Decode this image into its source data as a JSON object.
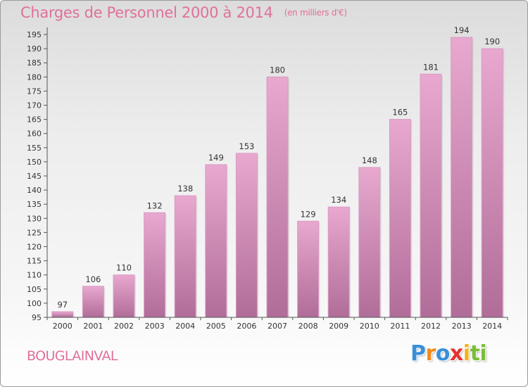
{
  "header": {
    "title": "Charges de Personnel 2000 à 2014",
    "subtitle": "(en milliers d'€)"
  },
  "commune": "BOUGLAINVAL",
  "logo": {
    "letters": [
      "P",
      "r",
      "o",
      "x",
      "i",
      "ti"
    ]
  },
  "colors": {
    "title": "#e0709a",
    "bar_top": "#e8a8cf",
    "bar_bottom": "#b06d98",
    "axis": "#555555"
  },
  "chart_data": {
    "type": "bar",
    "title": "Charges de Personnel 2000 à 2014",
    "subtitle": "(en milliers d'€)",
    "xlabel": "",
    "ylabel": "",
    "categories": [
      "2000",
      "2001",
      "2002",
      "2003",
      "2004",
      "2005",
      "2006",
      "2007",
      "2008",
      "2009",
      "2010",
      "2011",
      "2012",
      "2013",
      "2014"
    ],
    "values": [
      97,
      106,
      110,
      132,
      138,
      149,
      153,
      180,
      129,
      134,
      148,
      165,
      181,
      194,
      190
    ],
    "value_labels": [
      "97",
      "106",
      "110",
      "132",
      "138",
      "149",
      "153",
      "180",
      "129",
      "134",
      "148",
      "165",
      "181",
      "194",
      "190"
    ],
    "ylim": [
      95,
      197
    ],
    "yticks": [
      "95",
      "100",
      "105",
      "110",
      "115",
      "120",
      "125",
      "130",
      "135",
      "140",
      "145",
      "150",
      "155",
      "160",
      "165",
      "170",
      "175",
      "180",
      "185",
      "190",
      "195"
    ],
    "grid": false,
    "legend": "none"
  }
}
